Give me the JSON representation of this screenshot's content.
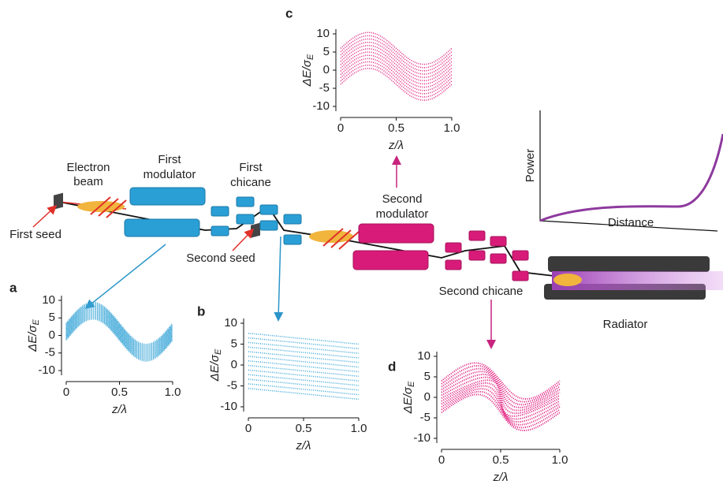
{
  "labels": {
    "electron_beam": [
      "Electron",
      "beam"
    ],
    "first_modulator": [
      "First",
      "modulator"
    ],
    "first_chicane": [
      "First",
      "chicane"
    ],
    "first_seed": "First seed",
    "second_seed": "Second seed",
    "second_modulator": [
      "Second",
      "modulator"
    ],
    "second_chicane": "Second chicane",
    "radiator": "Radiator"
  },
  "power_plot": {
    "ylabel": "Power",
    "xlabel": "Distance"
  },
  "panels": [
    {
      "label": "a",
      "ylabel": {
        "main": "ΔE/σ",
        "sub": "E"
      },
      "xlabel": "z/λ",
      "xlim": [
        0,
        1
      ],
      "ylim": [
        -10,
        10
      ],
      "xticks": [
        0,
        0.5,
        {
          "value": 1,
          "label": "1.0"
        }
      ],
      "yticks": [
        10,
        5,
        0,
        -5,
        -10
      ]
    },
    {
      "label": "b",
      "ylabel": {
        "main": "ΔE/σ",
        "sub": "E"
      },
      "xlabel": "z/λ",
      "xlim": [
        0,
        1
      ],
      "ylim": [
        -10,
        10
      ],
      "xticks": [
        0,
        0.5,
        {
          "value": 1,
          "label": "1.0"
        }
      ],
      "yticks": [
        10,
        5,
        0,
        -5,
        -10
      ]
    },
    {
      "label": "c",
      "ylabel": {
        "main": "ΔE/σ",
        "sub": "E"
      },
      "xlabel": "z/λ",
      "xlim": [
        0,
        1
      ],
      "ylim": [
        -10,
        10
      ],
      "xticks": [
        0,
        0.5,
        {
          "value": 1,
          "label": "1.0"
        }
      ],
      "yticks": [
        10,
        5,
        0,
        -5,
        -10
      ]
    },
    {
      "label": "d",
      "ylabel": {
        "main": "ΔE/σ",
        "sub": "E"
      },
      "xlabel": "z/λ",
      "xlim": [
        0,
        1
      ],
      "ylim": [
        -10,
        10
      ],
      "xticks": [
        0,
        0.5,
        {
          "value": 1,
          "label": "1.0"
        }
      ],
      "yticks": [
        10,
        5,
        0,
        -5,
        -10
      ]
    }
  ]
}
